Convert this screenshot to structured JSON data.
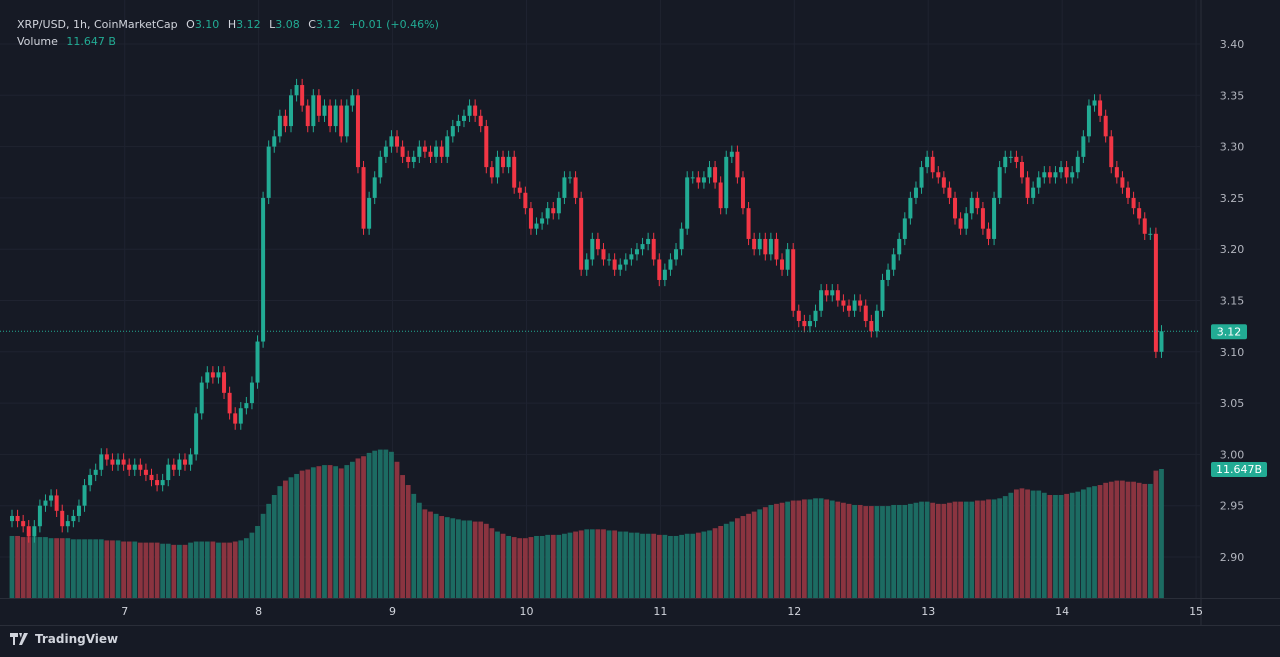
{
  "legend": {
    "symbol": "XRP/USD, 1h, CoinMarketCap",
    "open_label": "O",
    "open": "3.10",
    "high_label": "H",
    "high": "3.12",
    "low_label": "L",
    "low": "3.08",
    "close_label": "C",
    "close": "3.12",
    "change": "+0.01 (+0.46%)",
    "volume_label": "Volume",
    "volume": "11.647 B"
  },
  "branding": {
    "name": "TradingView"
  },
  "colors": {
    "background": "#161a25",
    "up": "#22ab94",
    "down": "#f23645",
    "volume_up": "#1c6b62",
    "volume_down": "#8a3440"
  },
  "chart_data": {
    "type": "candlestick",
    "interval": "1h",
    "y_axis": {
      "range": [
        2.87,
        3.41
      ],
      "ticks": [
        "3.40",
        "3.35",
        "3.30",
        "3.25",
        "3.20",
        "3.15",
        "3.10",
        "3.05",
        "3.00",
        "2.95",
        "2.90"
      ],
      "position": "right"
    },
    "x_axis": {
      "ticks": [
        "7",
        "8",
        "9",
        "10",
        "11",
        "12",
        "13",
        "14",
        "15"
      ]
    },
    "last_price_label": "3.12",
    "last_volume_label": "11.647B",
    "grid": true,
    "first_open": 2.935,
    "closes": [
      2.94,
      2.935,
      2.93,
      2.92,
      2.93,
      2.95,
      2.955,
      2.96,
      2.945,
      2.93,
      2.935,
      2.94,
      2.95,
      2.97,
      2.98,
      2.985,
      3.0,
      2.995,
      2.99,
      2.995,
      2.99,
      2.985,
      2.99,
      2.985,
      2.98,
      2.975,
      2.97,
      2.975,
      2.99,
      2.985,
      2.995,
      2.99,
      3.0,
      3.04,
      3.07,
      3.08,
      3.075,
      3.08,
      3.06,
      3.04,
      3.03,
      3.045,
      3.05,
      3.07,
      3.11,
      3.25,
      3.3,
      3.31,
      3.33,
      3.32,
      3.35,
      3.36,
      3.34,
      3.32,
      3.35,
      3.33,
      3.34,
      3.32,
      3.34,
      3.31,
      3.34,
      3.35,
      3.28,
      3.22,
      3.25,
      3.27,
      3.29,
      3.3,
      3.31,
      3.3,
      3.29,
      3.285,
      3.29,
      3.3,
      3.295,
      3.29,
      3.3,
      3.29,
      3.31,
      3.32,
      3.325,
      3.33,
      3.34,
      3.33,
      3.32,
      3.28,
      3.27,
      3.29,
      3.28,
      3.29,
      3.26,
      3.255,
      3.24,
      3.22,
      3.225,
      3.23,
      3.24,
      3.235,
      3.25,
      3.27,
      3.27,
      3.25,
      3.18,
      3.19,
      3.21,
      3.2,
      3.19,
      3.19,
      3.18,
      3.185,
      3.19,
      3.195,
      3.2,
      3.205,
      3.21,
      3.19,
      3.17,
      3.18,
      3.19,
      3.2,
      3.22,
      3.27,
      3.27,
      3.265,
      3.27,
      3.28,
      3.265,
      3.24,
      3.29,
      3.295,
      3.27,
      3.24,
      3.21,
      3.2,
      3.21,
      3.195,
      3.21,
      3.19,
      3.18,
      3.2,
      3.14,
      3.13,
      3.125,
      3.13,
      3.14,
      3.16,
      3.155,
      3.16,
      3.15,
      3.145,
      3.14,
      3.15,
      3.145,
      3.13,
      3.12,
      3.14,
      3.17,
      3.18,
      3.195,
      3.21,
      3.23,
      3.25,
      3.26,
      3.28,
      3.29,
      3.275,
      3.27,
      3.26,
      3.25,
      3.23,
      3.22,
      3.235,
      3.25,
      3.24,
      3.22,
      3.21,
      3.25,
      3.28,
      3.29,
      3.29,
      3.285,
      3.27,
      3.25,
      3.26,
      3.27,
      3.275,
      3.27,
      3.275,
      3.28,
      3.27,
      3.275,
      3.29,
      3.31,
      3.34,
      3.345,
      3.33,
      3.31,
      3.28,
      3.27,
      3.26,
      3.25,
      3.24,
      3.23,
      3.215,
      3.215,
      3.1,
      3.12
    ],
    "volumes_billions": [
      5.6,
      5.6,
      5.5,
      5.5,
      5.5,
      5.5,
      5.5,
      5.4,
      5.4,
      5.4,
      5.4,
      5.3,
      5.3,
      5.3,
      5.3,
      5.3,
      5.3,
      5.2,
      5.2,
      5.2,
      5.1,
      5.1,
      5.1,
      5.0,
      5.0,
      5.0,
      5.0,
      4.9,
      4.9,
      4.8,
      4.8,
      4.8,
      5.0,
      5.1,
      5.1,
      5.1,
      5.1,
      5.0,
      5.0,
      5.0,
      5.1,
      5.2,
      5.4,
      5.9,
      6.5,
      7.6,
      8.5,
      9.3,
      10.1,
      10.6,
      10.9,
      11.2,
      11.5,
      11.6,
      11.8,
      11.9,
      12.0,
      12.0,
      11.9,
      11.7,
      12.0,
      12.3,
      12.6,
      12.8,
      13.1,
      13.3,
      13.4,
      13.4,
      13.2,
      12.3,
      11.1,
      10.2,
      9.4,
      8.6,
      8.0,
      7.8,
      7.6,
      7.4,
      7.3,
      7.2,
      7.1,
      7.0,
      7.0,
      6.9,
      6.9,
      6.7,
      6.3,
      6.0,
      5.8,
      5.6,
      5.5,
      5.4,
      5.4,
      5.5,
      5.6,
      5.6,
      5.7,
      5.7,
      5.7,
      5.8,
      5.9,
      6.0,
      6.1,
      6.2,
      6.2,
      6.2,
      6.2,
      6.1,
      6.1,
      6.0,
      6.0,
      5.9,
      5.9,
      5.8,
      5.8,
      5.8,
      5.7,
      5.7,
      5.6,
      5.6,
      5.7,
      5.8,
      5.8,
      5.9,
      6.0,
      6.1,
      6.3,
      6.5,
      6.7,
      6.9,
      7.2,
      7.4,
      7.6,
      7.8,
      8.0,
      8.2,
      8.4,
      8.5,
      8.6,
      8.7,
      8.8,
      8.8,
      8.9,
      8.9,
      9.0,
      9.0,
      8.9,
      8.8,
      8.7,
      8.6,
      8.5,
      8.4,
      8.4,
      8.3,
      8.3,
      8.3,
      8.3,
      8.3,
      8.4,
      8.4,
      8.4,
      8.5,
      8.6,
      8.7,
      8.7,
      8.6,
      8.5,
      8.5,
      8.6,
      8.7,
      8.7,
      8.7,
      8.7,
      8.8,
      8.8,
      8.9,
      8.9,
      9.0,
      9.2,
      9.5,
      9.8,
      9.9,
      9.8,
      9.7,
      9.7,
      9.5,
      9.3,
      9.3,
      9.3,
      9.4,
      9.5,
      9.6,
      9.8,
      10.0,
      10.1,
      10.2,
      10.4,
      10.5,
      10.6,
      10.6,
      10.5,
      10.5,
      10.4,
      10.3,
      10.3,
      11.5,
      11.647
    ]
  }
}
